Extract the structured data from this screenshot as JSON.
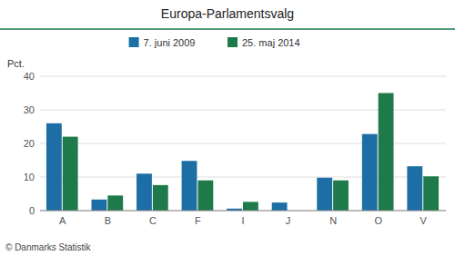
{
  "chart_data": {
    "type": "bar",
    "title": "Europa-Parlamentsvalg",
    "y_label": "Pct.",
    "footnote": "© Danmarks Statistik",
    "categories": [
      "A",
      "B",
      "C",
      "F",
      "I",
      "J",
      "N",
      "O",
      "V"
    ],
    "series": [
      {
        "name": "7. juni 2009",
        "color": "#1c6ea4",
        "values": [
          26.0,
          3.3,
          11.0,
          14.8,
          0.6,
          2.4,
          9.8,
          22.8,
          13.2
        ]
      },
      {
        "name": "25. maj 2014",
        "color": "#1e7a4a",
        "values": [
          22.0,
          4.5,
          7.6,
          9.0,
          2.6,
          0.0,
          9.0,
          35.0,
          10.2
        ]
      }
    ],
    "ylim": [
      0,
      40
    ],
    "yticks": [
      0,
      10,
      20,
      30,
      40
    ],
    "grid": true,
    "legend": "top"
  }
}
